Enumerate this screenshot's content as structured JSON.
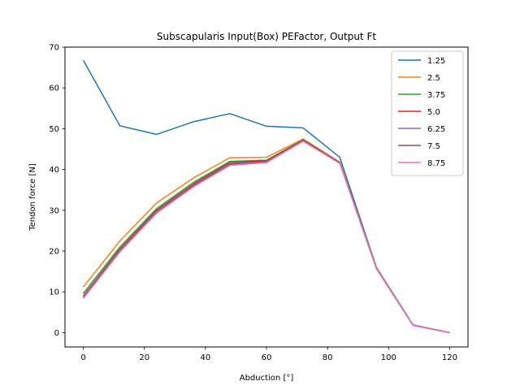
{
  "chart_data": {
    "type": "line",
    "title": "Subscapularis Input(Box) PEFactor, Output Ft",
    "xlabel": "Abduction [°]",
    "ylabel": "Tendon force [N]",
    "xlim": [
      -6,
      126
    ],
    "ylim": [
      -3.5,
      70
    ],
    "xticks": [
      0,
      20,
      40,
      60,
      80,
      100,
      120
    ],
    "yticks": [
      0,
      10,
      20,
      30,
      40,
      50,
      60,
      70
    ],
    "grid": false,
    "legend_position": "top-right",
    "x": [
      0,
      12,
      24,
      36,
      48,
      60,
      72,
      84,
      96,
      108,
      120
    ],
    "series": [
      {
        "name": "1.25",
        "color": "#1f77b4",
        "values": [
          66.8,
          50.7,
          48.6,
          51.7,
          53.7,
          50.6,
          50.2,
          43.0,
          16.0,
          1.9,
          0.0
        ]
      },
      {
        "name": "2.5",
        "color": "#ff7f0e",
        "values": [
          11.2,
          22.5,
          31.8,
          37.9,
          42.9,
          43.0,
          47.5,
          41.8,
          15.9,
          1.8,
          0.0
        ]
      },
      {
        "name": "3.75",
        "color": "#2ca02c",
        "values": [
          9.6,
          21.0,
          30.4,
          36.8,
          42.0,
          42.3,
          47.3,
          41.7,
          15.8,
          1.8,
          0.0
        ]
      },
      {
        "name": "5.0",
        "color": "#d62728",
        "values": [
          9.0,
          20.5,
          30.0,
          36.4,
          41.7,
          42.1,
          47.2,
          41.7,
          15.8,
          1.8,
          0.0
        ]
      },
      {
        "name": "6.25",
        "color": "#9467bd",
        "values": [
          8.8,
          20.2,
          29.7,
          36.1,
          41.4,
          41.9,
          47.1,
          41.6,
          15.7,
          1.8,
          0.0
        ]
      },
      {
        "name": "7.5",
        "color": "#8c564b",
        "values": [
          8.6,
          20.0,
          29.5,
          35.9,
          41.2,
          41.8,
          47.0,
          41.6,
          15.7,
          1.8,
          0.0
        ]
      },
      {
        "name": "8.75",
        "color": "#e377c2",
        "values": [
          8.4,
          19.8,
          29.3,
          35.7,
          41.0,
          41.7,
          46.9,
          41.5,
          15.7,
          1.8,
          0.0
        ]
      }
    ]
  }
}
